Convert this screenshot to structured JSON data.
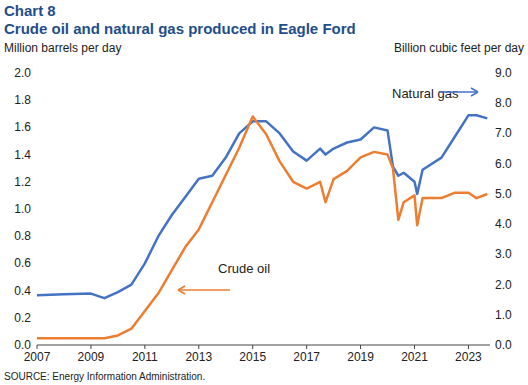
{
  "chart_data": {
    "type": "line",
    "title": "Chart 8",
    "subtitle": "Crude oil and natural gas produced in Eagle Ford",
    "y_label": "Million barrels per day",
    "y2_label": "Billion cubic feet per day",
    "source": "SOURCE: Energy Information Administration.",
    "x": [
      2007,
      2008,
      2009,
      2009.5,
      2010,
      2010.5,
      2011,
      2011.5,
      2012,
      2012.5,
      2013,
      2013.5,
      2014,
      2014.5,
      2015,
      2015.5,
      2016,
      2016.5,
      2017,
      2017.5,
      2017.7,
      2018,
      2018.5,
      2019,
      2019.5,
      2020,
      2020.2,
      2020.4,
      2020.6,
      2021,
      2021.1,
      2021.3,
      2022,
      2022.5,
      2023,
      2023.3,
      2023.7
    ],
    "series": [
      {
        "name": "Natural gas",
        "color": "#4472c4",
        "axis": "y2",
        "values": [
          1.65,
          1.68,
          1.7,
          1.55,
          1.75,
          2.0,
          2.7,
          3.6,
          4.3,
          4.9,
          5.5,
          5.6,
          6.2,
          7.0,
          7.4,
          7.4,
          7.0,
          6.4,
          6.1,
          6.5,
          6.3,
          6.5,
          6.7,
          6.8,
          7.2,
          7.1,
          5.9,
          5.6,
          5.7,
          5.4,
          5.0,
          5.8,
          6.2,
          6.9,
          7.6,
          7.6,
          7.5
        ]
      },
      {
        "name": "Crude oil",
        "color": "#ed7d31",
        "axis": "y",
        "values": [
          0.05,
          0.05,
          0.05,
          0.05,
          0.07,
          0.12,
          0.25,
          0.38,
          0.55,
          0.72,
          0.85,
          1.05,
          1.25,
          1.45,
          1.68,
          1.55,
          1.35,
          1.2,
          1.15,
          1.2,
          1.05,
          1.22,
          1.28,
          1.38,
          1.42,
          1.4,
          1.3,
          0.92,
          1.05,
          1.1,
          0.88,
          1.08,
          1.08,
          1.12,
          1.12,
          1.08,
          1.11
        ]
      }
    ],
    "xlim": [
      2007,
      2023.8
    ],
    "xticks": [
      2007,
      2009,
      2011,
      2013,
      2015,
      2017,
      2019,
      2021,
      2023
    ],
    "ylim": [
      0,
      2
    ],
    "yticks": [
      {
        "value": 0,
        "label": "0.0"
      },
      0.2,
      0.4,
      0.6,
      0.8,
      {
        "value": 1,
        "label": "1.0"
      },
      1.2,
      1.4,
      1.6,
      1.8,
      {
        "value": 2,
        "label": "2.0"
      }
    ],
    "y2lim": [
      0,
      9
    ],
    "y2ticks": [
      {
        "value": 0,
        "label": "0.0"
      },
      {
        "value": 1,
        "label": "1.0"
      },
      {
        "value": 2,
        "label": "2.0"
      },
      {
        "value": 3,
        "label": "3.0"
      },
      {
        "value": 4,
        "label": "4.0"
      },
      {
        "value": 5,
        "label": "5.0"
      },
      {
        "value": 6,
        "label": "6.0"
      },
      {
        "value": 7,
        "label": "7.0"
      },
      {
        "value": 8,
        "label": "8.0"
      },
      {
        "value": 9,
        "label": "9.0"
      }
    ],
    "grid": false
  }
}
